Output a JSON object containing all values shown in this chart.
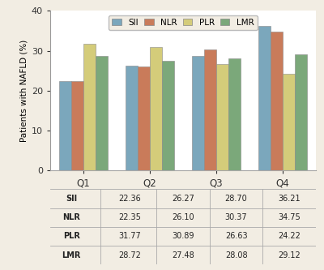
{
  "categories": [
    "Q1",
    "Q2",
    "Q3",
    "Q4"
  ],
  "series": {
    "SII": [
      22.36,
      26.27,
      28.7,
      36.21
    ],
    "NLR": [
      22.35,
      26.1,
      30.37,
      34.75
    ],
    "PLR": [
      31.77,
      30.89,
      26.63,
      24.22
    ],
    "LMR": [
      28.72,
      27.48,
      28.08,
      29.12
    ]
  },
  "colors": {
    "SII": "#7BA7BC",
    "NLR": "#C97B5A",
    "PLR": "#D4CC7A",
    "LMR": "#7BA87A"
  },
  "ylabel": "Patients with NAFLD (%)",
  "ylim": [
    0,
    40
  ],
  "yticks": [
    0,
    10,
    20,
    30,
    40
  ],
  "bar_width": 0.18,
  "table_rows": [
    [
      "SII",
      "22.36",
      "26.27",
      "28.70",
      "36.21"
    ],
    [
      "NLR",
      "22.35",
      "26.10",
      "30.37",
      "34.75"
    ],
    [
      "PLR",
      "31.77",
      "30.89",
      "26.63",
      "24.22"
    ],
    [
      "LMR",
      "28.72",
      "27.48",
      "28.08",
      "29.12"
    ]
  ],
  "bg_color": "#F2EDE3",
  "chart_bg": "#FFFFFF",
  "line_color": "#AAAAAA"
}
